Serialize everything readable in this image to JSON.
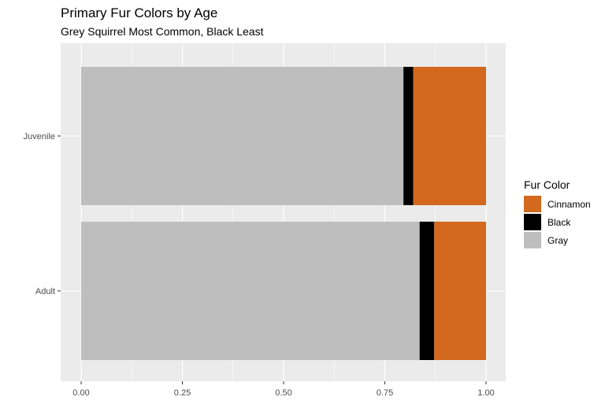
{
  "chart_data": {
    "type": "bar",
    "orientation": "horizontal",
    "stacking": "fill",
    "title": "Primary Fur Colors by Age",
    "subtitle": "Grey Squirrel Most Common, Black Least",
    "categories": [
      "Juvenile",
      "Adult"
    ],
    "series": [
      {
        "name": "Gray",
        "color": "#bebebe",
        "values": [
          0.796,
          0.836
        ]
      },
      {
        "name": "Black",
        "color": "#000000",
        "values": [
          0.024,
          0.036
        ]
      },
      {
        "name": "Cinnamon",
        "color": "#d2691e",
        "values": [
          0.18,
          0.128
        ]
      }
    ],
    "xlim": [
      0,
      1
    ],
    "x_ticks": [
      "0.00",
      "0.25",
      "0.50",
      "0.75",
      "1.00"
    ],
    "x_tick_values": [
      0,
      0.25,
      0.5,
      0.75,
      1.0
    ],
    "grid": true,
    "legend": {
      "title": "Fur Color",
      "position": "right",
      "items": [
        "Cinnamon",
        "Black",
        "Gray"
      ]
    },
    "panel_background": "#ebebeb",
    "grid_color": "#ffffff"
  }
}
